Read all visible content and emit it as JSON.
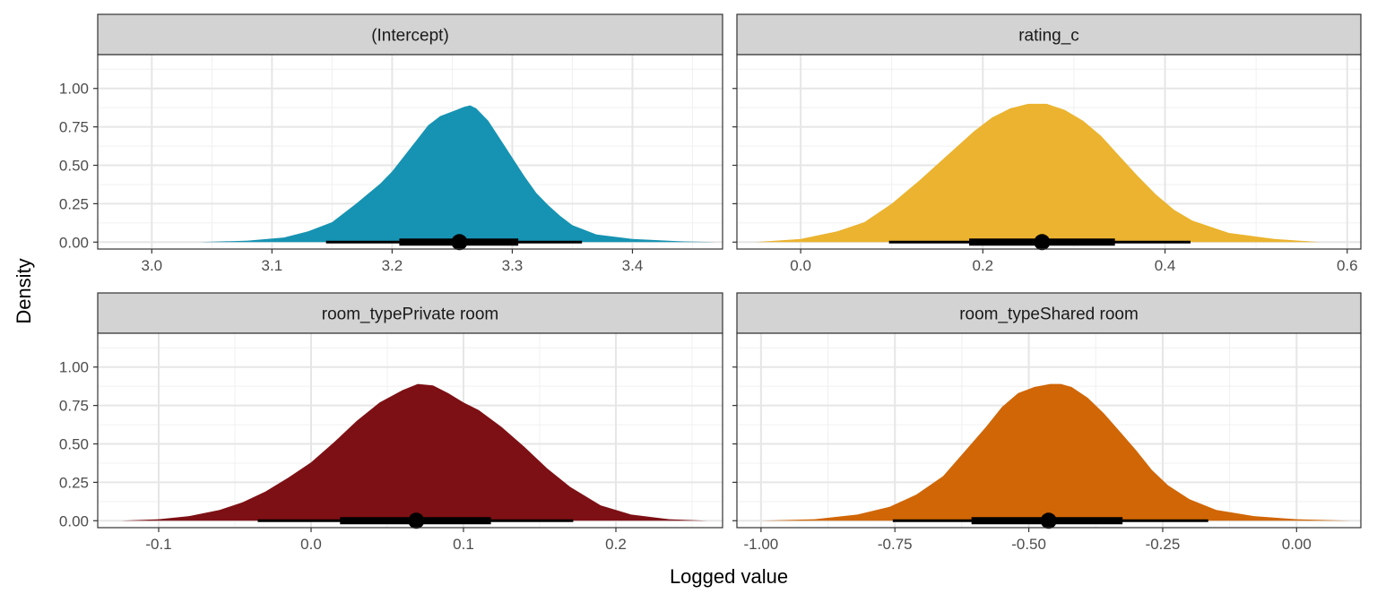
{
  "chart_data": {
    "type": "area",
    "subtype": "faceted posterior density with point-interval",
    "xlabel": "Logged value",
    "ylabel": "Density",
    "facet_grid": {
      "rows": 2,
      "cols": 2,
      "scales": "free_x"
    },
    "panel_background": "#ffffff",
    "strip_color": "#d3d3d3",
    "grid": true,
    "legend": "none",
    "facets": [
      {
        "title": "(Intercept)",
        "color": "#1693b2",
        "xlim": [
          2.955,
          3.475
        ],
        "ylim": [
          -0.045,
          1.22
        ],
        "xticks": [
          3.0,
          3.1,
          3.2,
          3.3,
          3.4
        ],
        "xtick_labels": [
          "3.0",
          "3.1",
          "3.2",
          "3.3",
          "3.4"
        ],
        "yticks": [
          0,
          0.25,
          0.5,
          0.75,
          1.0
        ],
        "ytick_labels": [
          "0.00",
          "0.25",
          "0.50",
          "0.75",
          "1.00"
        ],
        "density": {
          "x": [
            3.04,
            3.08,
            3.11,
            3.13,
            3.15,
            3.17,
            3.19,
            3.2,
            3.21,
            3.22,
            3.23,
            3.24,
            3.25,
            3.26,
            3.265,
            3.27,
            3.28,
            3.29,
            3.3,
            3.31,
            3.32,
            3.33,
            3.34,
            3.35,
            3.37,
            3.4,
            3.44,
            3.47
          ],
          "y": [
            0.0,
            0.01,
            0.03,
            0.07,
            0.13,
            0.25,
            0.38,
            0.46,
            0.56,
            0.66,
            0.76,
            0.82,
            0.85,
            0.88,
            0.89,
            0.87,
            0.79,
            0.67,
            0.55,
            0.43,
            0.32,
            0.24,
            0.17,
            0.11,
            0.05,
            0.02,
            0.005,
            0.0
          ]
        },
        "point": 3.256,
        "interval_66": [
          3.206,
          3.305
        ],
        "interval_95": [
          3.145,
          3.358
        ]
      },
      {
        "title": "rating_c",
        "color": "#ebb32f",
        "xlim": [
          -0.07,
          0.615
        ],
        "ylim": [
          -0.045,
          1.22
        ],
        "xticks": [
          0.0,
          0.2,
          0.4,
          0.6
        ],
        "xtick_labels": [
          "0.0",
          "0.2",
          "0.4",
          "0.6"
        ],
        "yticks": [
          0,
          0.25,
          0.5,
          0.75,
          1.0
        ],
        "ytick_labels": [
          "0.00",
          "0.25",
          "0.50",
          "0.75",
          "1.00"
        ],
        "density": {
          "x": [
            -0.05,
            0.0,
            0.04,
            0.07,
            0.1,
            0.13,
            0.16,
            0.19,
            0.21,
            0.23,
            0.25,
            0.27,
            0.29,
            0.31,
            0.33,
            0.35,
            0.37,
            0.39,
            0.41,
            0.43,
            0.47,
            0.52,
            0.57
          ],
          "y": [
            0.0,
            0.02,
            0.07,
            0.13,
            0.25,
            0.4,
            0.56,
            0.72,
            0.81,
            0.87,
            0.9,
            0.9,
            0.86,
            0.79,
            0.69,
            0.56,
            0.43,
            0.31,
            0.21,
            0.14,
            0.06,
            0.02,
            0.0
          ]
        },
        "point": 0.265,
        "interval_66": [
          0.185,
          0.345
        ],
        "interval_95": [
          0.097,
          0.428
        ]
      },
      {
        "title": "room_typePrivate room",
        "color": "#7d1014",
        "xlim": [
          -0.14,
          0.27
        ],
        "ylim": [
          -0.045,
          1.22
        ],
        "xticks": [
          -0.1,
          0.0,
          0.1,
          0.2
        ],
        "xtick_labels": [
          "-0.1",
          "0.0",
          "0.1",
          "0.2"
        ],
        "yticks": [
          0,
          0.25,
          0.5,
          0.75,
          1.0
        ],
        "ytick_labels": [
          "0.00",
          "0.25",
          "0.50",
          "0.75",
          "1.00"
        ],
        "density": {
          "x": [
            -0.125,
            -0.1,
            -0.08,
            -0.06,
            -0.045,
            -0.03,
            -0.015,
            0.0,
            0.015,
            0.03,
            0.045,
            0.06,
            0.07,
            0.08,
            0.09,
            0.1,
            0.11,
            0.125,
            0.14,
            0.155,
            0.17,
            0.19,
            0.21,
            0.235,
            0.26
          ],
          "y": [
            0.0,
            0.01,
            0.03,
            0.07,
            0.12,
            0.19,
            0.28,
            0.38,
            0.51,
            0.65,
            0.77,
            0.85,
            0.89,
            0.88,
            0.83,
            0.77,
            0.72,
            0.61,
            0.48,
            0.34,
            0.22,
            0.1,
            0.04,
            0.01,
            0.0
          ]
        },
        "point": 0.069,
        "interval_66": [
          0.019,
          0.118
        ],
        "interval_95": [
          -0.035,
          0.172
        ]
      },
      {
        "title": "room_typeShared room",
        "color": "#d06606",
        "xlim": [
          -1.045,
          0.12
        ],
        "ylim": [
          -0.045,
          1.22
        ],
        "xticks": [
          -1.0,
          -0.75,
          -0.5,
          -0.25,
          0.0
        ],
        "xtick_labels": [
          "-1.00",
          "-0.75",
          "-0.50",
          "-0.25",
          "0.00"
        ],
        "yticks": [
          0,
          0.25,
          0.5,
          0.75,
          1.0
        ],
        "ytick_labels": [
          "0.00",
          "0.25",
          "0.50",
          "0.75",
          "1.00"
        ],
        "density": {
          "x": [
            -1.0,
            -0.9,
            -0.82,
            -0.76,
            -0.71,
            -0.66,
            -0.62,
            -0.58,
            -0.55,
            -0.52,
            -0.49,
            -0.46,
            -0.44,
            -0.42,
            -0.39,
            -0.36,
            -0.33,
            -0.3,
            -0.27,
            -0.24,
            -0.2,
            -0.15,
            -0.08,
            0.0,
            0.1
          ],
          "y": [
            0.0,
            0.01,
            0.04,
            0.09,
            0.17,
            0.29,
            0.45,
            0.61,
            0.74,
            0.83,
            0.87,
            0.89,
            0.89,
            0.87,
            0.8,
            0.7,
            0.58,
            0.46,
            0.33,
            0.23,
            0.14,
            0.07,
            0.03,
            0.01,
            0.0
          ]
        },
        "point": -0.463,
        "interval_66": [
          -0.607,
          -0.325
        ],
        "interval_95": [
          -0.754,
          -0.165
        ]
      }
    ]
  }
}
